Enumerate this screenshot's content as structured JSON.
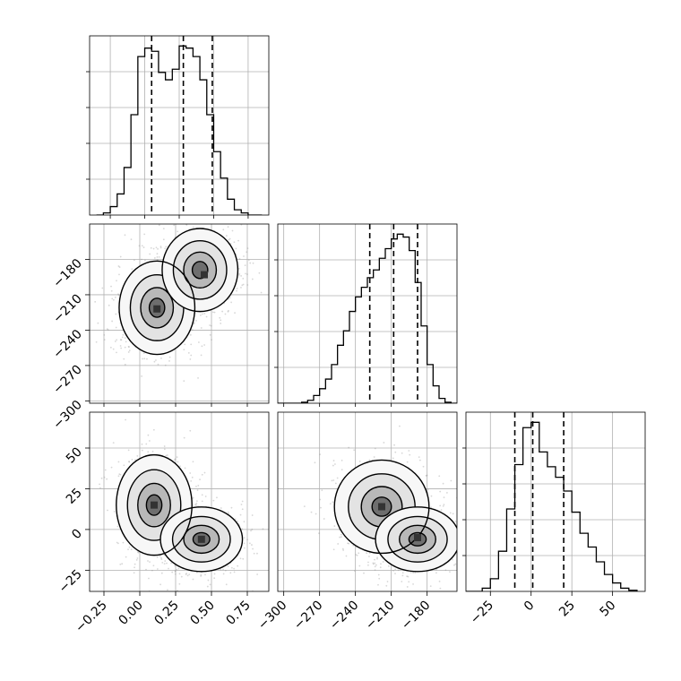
{
  "chart_data": [
    {
      "type": "histogram",
      "panel": "param-1-marginal",
      "bins": [
        -0.35,
        -0.3,
        -0.25,
        -0.2,
        -0.15,
        -0.1,
        -0.05,
        0.0,
        0.05,
        0.1,
        0.15,
        0.2,
        0.25,
        0.3,
        0.35,
        0.4,
        0.45,
        0.5,
        0.55,
        0.6,
        0.65,
        0.7,
        0.75,
        0.8,
        0.85
      ],
      "counts": [
        0,
        2,
        8,
        20,
        45,
        95,
        150,
        158,
        155,
        135,
        128,
        138,
        160,
        158,
        150,
        128,
        95,
        60,
        35,
        15,
        5,
        2,
        0,
        0
      ],
      "quantiles": [
        0.05,
        0.28,
        0.49
      ],
      "xlim": [
        -0.4,
        0.9
      ],
      "ticks_x": []
    },
    {
      "type": "histogram",
      "panel": "param-2-marginal",
      "bins": [
        -305,
        -300,
        -295,
        -290,
        -285,
        -280,
        -275,
        -270,
        -265,
        -260,
        -255,
        -250,
        -245,
        -240,
        -235,
        -230,
        -225,
        -220,
        -215,
        -210,
        -205,
        -200,
        -195,
        -190,
        -185,
        -180,
        -175,
        -170,
        -165,
        -160,
        -155
      ],
      "counts": [
        0,
        0,
        0,
        0,
        1,
        3,
        8,
        15,
        25,
        40,
        60,
        75,
        95,
        110,
        120,
        130,
        138,
        150,
        160,
        170,
        175,
        172,
        158,
        125,
        80,
        40,
        18,
        5,
        1,
        0
      ],
      "quantiles": [
        -228,
        -208,
        -188
      ],
      "xlim": [
        -305,
        -155
      ],
      "ylabel_ticks": [
        "−180",
        "−210",
        "−240",
        "−270",
        "−300"
      ],
      "ytick_values": [
        -180,
        -210,
        -240,
        -270,
        -300
      ]
    },
    {
      "type": "histogram",
      "panel": "param-3-marginal",
      "bins": [
        -40,
        -35,
        -30,
        -25,
        -20,
        -15,
        -10,
        -5,
        0,
        5,
        10,
        15,
        20,
        25,
        30,
        35,
        40,
        45,
        50,
        55,
        60,
        65
      ],
      "counts": [
        0,
        0,
        3,
        12,
        38,
        78,
        120,
        155,
        160,
        132,
        118,
        108,
        95,
        75,
        55,
        42,
        28,
        16,
        8,
        3,
        1
      ],
      "quantiles": [
        -10,
        1,
        20
      ],
      "xlim": [
        -40,
        70
      ],
      "xtick_labels": [
        "−25",
        "0",
        "25",
        "50"
      ],
      "xtick_values": [
        -25,
        0,
        25,
        50
      ]
    },
    {
      "type": "scatter-density",
      "panel": "param-1-vs-param-2",
      "xlim": [
        -0.35,
        0.9
      ],
      "ylim": [
        -302,
        -150
      ],
      "yticks": [
        -180,
        -210,
        -240,
        -270,
        -300
      ],
      "ytick_labels": [
        "−180",
        "−210",
        "−240",
        "−270",
        "−300"
      ],
      "clusters": [
        {
          "cx": 0.12,
          "cy": -221,
          "sx": 0.12,
          "sy": 18,
          "w": 0.5
        },
        {
          "cx": 0.42,
          "cy": -189,
          "sx": 0.12,
          "sy": 16,
          "w": 0.5
        }
      ],
      "peaks": [
        {
          "x": 0.45,
          "y": -193
        },
        {
          "x": 0.12,
          "y": -222
        }
      ]
    },
    {
      "type": "scatter-density",
      "panel": "param-1-vs-param-3",
      "xlim": [
        -0.35,
        0.9
      ],
      "ylim": [
        -38,
        72
      ],
      "xticks": [
        -0.25,
        0.0,
        0.25,
        0.5,
        0.75
      ],
      "xtick_labels": [
        "−0.25",
        "0.00",
        "0.25",
        "0.50",
        "0.75"
      ],
      "yticks": [
        50,
        25,
        0,
        -25
      ],
      "ytick_labels": [
        "50",
        "25",
        "0",
        "−25"
      ],
      "clusters": [
        {
          "cx": 0.1,
          "cy": 15,
          "sx": 0.12,
          "sy": 14,
          "w": 0.5
        },
        {
          "cx": 0.43,
          "cy": -6,
          "sx": 0.13,
          "sy": 9,
          "w": 0.5
        }
      ],
      "peaks": [
        {
          "x": 0.43,
          "y": -6
        },
        {
          "x": 0.1,
          "y": 15
        }
      ]
    },
    {
      "type": "scatter-density",
      "panel": "param-2-vs-param-3",
      "xlim": [
        -305,
        -155
      ],
      "ylim": [
        -38,
        72
      ],
      "xticks": [
        -300,
        -270,
        -240,
        -210,
        -180
      ],
      "xtick_labels": [
        "−300",
        "−270",
        "−240",
        "−210",
        "−180"
      ],
      "clusters": [
        {
          "cx": -218,
          "cy": 14,
          "sx": 18,
          "sy": 13,
          "w": 0.45
        },
        {
          "cx": -188,
          "cy": -6,
          "sx": 16,
          "sy": 9,
          "w": 0.55
        }
      ],
      "peaks": [
        {
          "x": -188,
          "y": -5
        },
        {
          "x": -218,
          "y": 14
        }
      ]
    }
  ],
  "colors": {
    "line": "#000000",
    "grid": "#b0b0b0",
    "points": "#8c8c8c",
    "fill_high": "#333333",
    "fill_low": "#ffffff"
  }
}
